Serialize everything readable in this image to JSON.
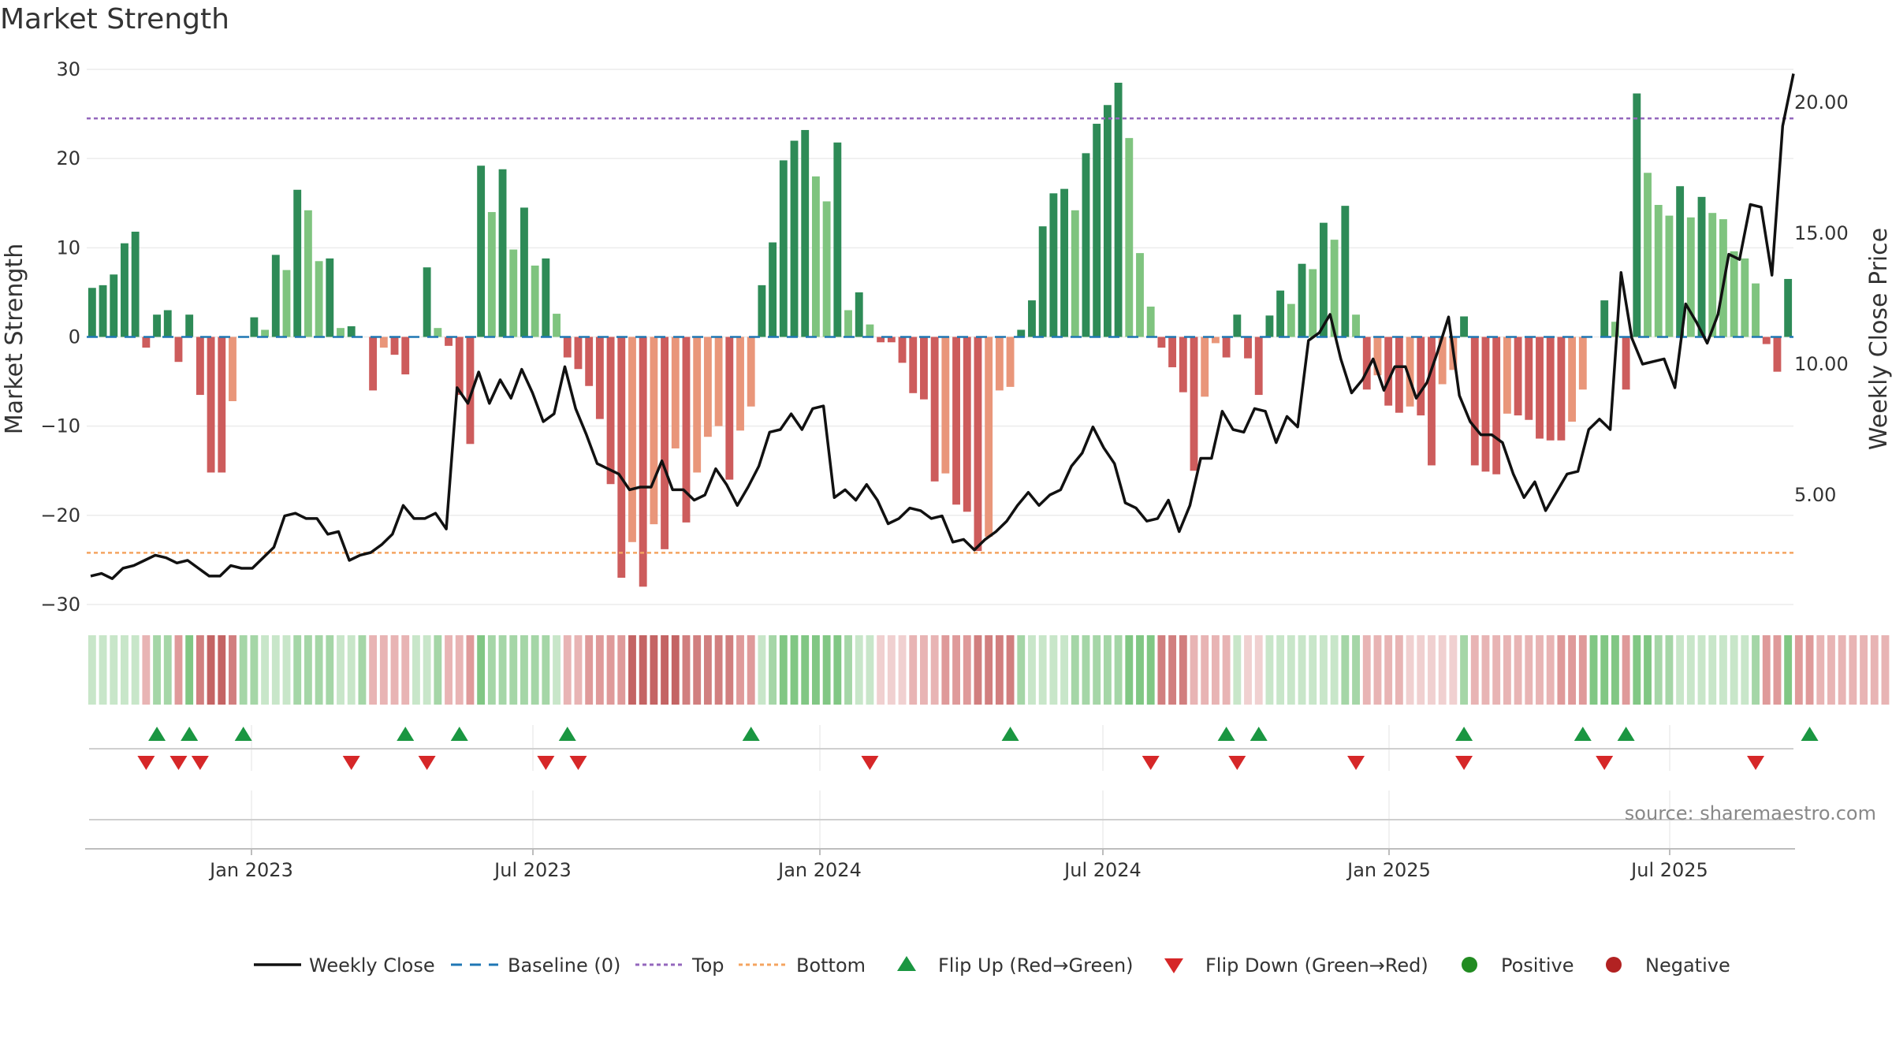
{
  "title": "Market Strength",
  "source": "source: sharemaestro.com",
  "colors": {
    "strong_green": "#2e8b57",
    "light_green": "#7fc47f",
    "strong_red": "#cd5c5c",
    "light_red": "#e9967a",
    "close_line": "#111111",
    "baseline": "#1f77b4",
    "top": "#9467bd",
    "bottom": "#f4a460",
    "flip_up": "#1a9641",
    "flip_down": "#d62728",
    "positive": "#228b22",
    "negative": "#b22222"
  },
  "chart_data": {
    "type": "bar",
    "title": "Market Strength",
    "ylabel": "Market Strength",
    "y2label": "Weekly Close Price",
    "ylim": [
      -30,
      30
    ],
    "y2lim": [
      1.0,
      21.5
    ],
    "yticks": [
      "30",
      "20",
      "10",
      "0",
      "−10",
      "−20",
      "−30"
    ],
    "y2ticks": [
      "20.00",
      "15.00",
      "10.00",
      "5.00"
    ],
    "xticks": [
      "Jan 2023",
      "Jul 2023",
      "Jan 2024",
      "Jul 2024",
      "Jan 2025",
      "Jul 2025"
    ],
    "top_level": 24.5,
    "bottom_level": -24.2,
    "strength": [
      5.5,
      5.8,
      7,
      10.5,
      11.8,
      -1.2,
      2.5,
      3,
      -2.8,
      2.5,
      -6.5,
      -15.2,
      -15.2,
      -7.2,
      0,
      2.2,
      0.8,
      9.2,
      7.5,
      16.5,
      14.2,
      8.5,
      8.8,
      1,
      1.2,
      0,
      -6,
      -1.2,
      -2,
      -4.2,
      0,
      7.8,
      1,
      -1,
      -6.5,
      -12,
      19.2,
      14,
      18.8,
      9.8,
      14.5,
      8,
      8.8,
      2.6,
      -2.3,
      -3.6,
      -5.5,
      -9.2,
      -16.5,
      -27,
      -23,
      -28,
      -21,
      -23.8,
      -12.5,
      -20.8,
      -15.2,
      -11.2,
      -10,
      -16,
      -10.5,
      -7.8,
      5.8,
      10.6,
      19.8,
      22,
      23.2,
      18,
      15.2,
      21.8,
      3,
      5,
      1.4,
      -0.6,
      -0.6,
      -2.9,
      -6.3,
      -7,
      -16.2,
      -15.3,
      -18.8,
      -19.6,
      -24,
      -22.4,
      -6,
      -5.6,
      0.8,
      4.1,
      12.4,
      16.1,
      16.6,
      14.2,
      20.6,
      23.9,
      26,
      28.5,
      22.3,
      9.4,
      3.4,
      -1.2,
      -3.4,
      -6.2,
      -15,
      -6.7,
      -0.7,
      -2.3,
      2.5,
      -2.4,
      -6.5,
      2.4,
      5.2,
      3.7,
      8.2,
      7.6,
      12.8,
      10.9,
      14.7,
      2.5,
      -5.9,
      -4.3,
      -7.7,
      -8.5,
      -7.8,
      -8.8,
      -14.4,
      -5.3,
      -3.7,
      2.3,
      -14.4,
      -15.1,
      -15.4,
      -8.6,
      -8.8,
      -9.3,
      -11.4,
      -11.6,
      -11.6,
      -9.5,
      -5.9,
      0,
      4.1,
      1.7,
      -5.9,
      27.3,
      18.4,
      14.8,
      13.6,
      16.9,
      13.4,
      15.7,
      13.9,
      13.2,
      9.6,
      8.8,
      6,
      -0.8,
      -3.9,
      6.5
    ],
    "close": [
      1.9,
      2,
      1.8,
      2.2,
      2.3,
      2.5,
      2.7,
      2.6,
      2.4,
      2.5,
      2.2,
      1.9,
      1.9,
      2.3,
      2.2,
      2.2,
      2.6,
      3,
      4.2,
      4.3,
      4.1,
      4.1,
      3.5,
      3.6,
      2.5,
      2.7,
      2.8,
      3.1,
      3.5,
      4.6,
      4.1,
      4.1,
      4.3,
      3.7,
      9.1,
      8.5,
      9.7,
      8.5,
      9.4,
      8.7,
      9.8,
      8.9,
      7.8,
      8.1,
      9.9,
      8.3,
      7.3,
      6.2,
      6,
      5.8,
      5.2,
      5.3,
      5.3,
      6.3,
      5.2,
      5.2,
      4.8,
      5,
      6,
      5.4,
      4.6,
      5.3,
      6.1,
      7.4,
      7.5,
      8.1,
      7.5,
      8.3,
      8.4,
      4.9,
      5.2,
      4.8,
      5.4,
      4.8,
      3.9,
      4.1,
      4.5,
      4.4,
      4.1,
      4.2,
      3.2,
      3.3,
      2.9,
      3.3,
      3.6,
      4,
      4.6,
      5.1,
      4.6,
      5,
      5.2,
      6.1,
      6.6,
      7.6,
      6.8,
      6.2,
      4.7,
      4.5,
      4,
      4.1,
      4.8,
      3.6,
      4.6,
      6.4,
      6.4,
      8.2,
      7.5,
      7.4,
      8.3,
      8.2,
      7,
      8,
      7.6,
      10.9,
      11.2,
      11.9,
      10.2,
      8.9,
      9.4,
      10.2,
      9,
      9.9,
      9.9,
      8.7,
      9.3,
      10.5,
      11.8,
      8.8,
      7.8,
      7.3,
      7.3,
      7,
      5.8,
      4.9,
      5.5,
      4.4,
      5.1,
      5.8,
      5.9,
      7.5,
      7.9,
      7.5,
      13.5,
      11,
      10,
      10.1,
      10.2,
      9.1,
      12.3,
      11.6,
      10.8,
      11.9,
      14.2,
      14,
      16.1,
      16,
      13.4,
      19.1,
      21.1
    ],
    "overlay_band": [
      1,
      1,
      1,
      1,
      1,
      2,
      2,
      2,
      3,
      3,
      4,
      5,
      5,
      4,
      2,
      2,
      1,
      1,
      1,
      2,
      2,
      2,
      2,
      1,
      1,
      2,
      2,
      2,
      2,
      2,
      1,
      1,
      2,
      2,
      2,
      3,
      3,
      2,
      2,
      2,
      2,
      2,
      2,
      1,
      2,
      2,
      3,
      3,
      3,
      3,
      5,
      5,
      5,
      5,
      5,
      4,
      4,
      4,
      4,
      4,
      3,
      3,
      1,
      2,
      3,
      3,
      3,
      3,
      3,
      3,
      2,
      1,
      1,
      1,
      1,
      1,
      2,
      2,
      2,
      3,
      3,
      3,
      4,
      4,
      4,
      4,
      2,
      1,
      1,
      1,
      1,
      2,
      2,
      2,
      2,
      2,
      3,
      3,
      3,
      4,
      4,
      4,
      2,
      2,
      2,
      2,
      1,
      1,
      1,
      1,
      1,
      1,
      1,
      1,
      1,
      1,
      2,
      2,
      2,
      2,
      2,
      2,
      1,
      1,
      1,
      1,
      1,
      2,
      2,
      2,
      2,
      2,
      2,
      2,
      2,
      2,
      3,
      3,
      3,
      3,
      3,
      3,
      3,
      3,
      3,
      2,
      2,
      1,
      1,
      1,
      1,
      1,
      1,
      1,
      2,
      3,
      3,
      3,
      3,
      3,
      2,
      2,
      2,
      2,
      2,
      2,
      2,
      2,
      2,
      2,
      1,
      1,
      1,
      2,
      2,
      1
    ],
    "flip_up_weeks": [
      6,
      9,
      14,
      29,
      34,
      44,
      61,
      85,
      105,
      108,
      127,
      138,
      142,
      159
    ],
    "flip_down_weeks": [
      5,
      8,
      10,
      24,
      31,
      42,
      45,
      72,
      98,
      106,
      117,
      127,
      140,
      154
    ],
    "legend": [
      "Weekly Close",
      "Baseline (0)",
      "Top",
      "Bottom",
      "Flip Up (Red→Green)",
      "Flip Down (Green→Red)",
      "Positive",
      "Negative"
    ]
  }
}
